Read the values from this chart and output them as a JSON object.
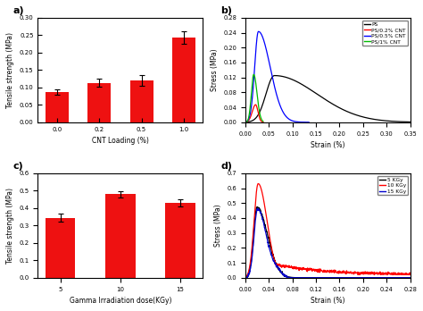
{
  "panel_a": {
    "categories": [
      "0.0",
      "0.2",
      "0.5",
      "1.0"
    ],
    "values": [
      0.086,
      0.113,
      0.12,
      0.243
    ],
    "errors": [
      0.008,
      0.012,
      0.015,
      0.018
    ],
    "bar_color": "#ee1111",
    "xlabel": "CNT Loading (%)",
    "ylabel": "Tensile strength (MPa)",
    "ylim": [
      0.0,
      0.3
    ],
    "yticks": [
      0.0,
      0.05,
      0.1,
      0.15,
      0.2,
      0.25,
      0.3
    ],
    "label": "a)"
  },
  "panel_b": {
    "xlabel": "Strain (%)",
    "ylabel": "Stress (MPa)",
    "xlim": [
      0.0,
      0.35
    ],
    "ylim": [
      0.0,
      0.28
    ],
    "yticks": [
      0.0,
      0.04,
      0.08,
      0.12,
      0.16,
      0.2,
      0.24,
      0.28
    ],
    "xticks": [
      0.0,
      0.05,
      0.1,
      0.15,
      0.2,
      0.25,
      0.3,
      0.35
    ],
    "label": "b)",
    "legend": [
      "PS",
      "PS/0.2% CNT",
      "PS/0.5% CNT",
      "PS/1% CNT"
    ],
    "colors": [
      "#000000",
      "#ff0000",
      "#0000ff",
      "#00bb00"
    ]
  },
  "panel_c": {
    "categories": [
      "5",
      "10",
      "15"
    ],
    "values": [
      0.345,
      0.48,
      0.43
    ],
    "errors": [
      0.025,
      0.018,
      0.022
    ],
    "bar_color": "#ee1111",
    "xlabel": "Gamma Irradiation dose(KGy)",
    "ylabel": "Tensile strength (MPa)",
    "ylim": [
      0.0,
      0.6
    ],
    "yticks": [
      0.0,
      0.1,
      0.2,
      0.3,
      0.4,
      0.5,
      0.6
    ],
    "label": "c)"
  },
  "panel_d": {
    "xlabel": "Strain (%)",
    "ylabel": "Stress (MPa)",
    "xlim": [
      0.0,
      0.28
    ],
    "ylim": [
      0.0,
      0.7
    ],
    "yticks": [
      0.0,
      0.1,
      0.2,
      0.3,
      0.4,
      0.5,
      0.6,
      0.7
    ],
    "xticks": [
      0.0,
      0.04,
      0.08,
      0.12,
      0.16,
      0.2,
      0.24,
      0.28
    ],
    "label": "d)",
    "legend": [
      "5 KGy",
      "10 KGy",
      "15 KGy"
    ],
    "colors": [
      "#000000",
      "#ff0000",
      "#0000cc"
    ]
  }
}
